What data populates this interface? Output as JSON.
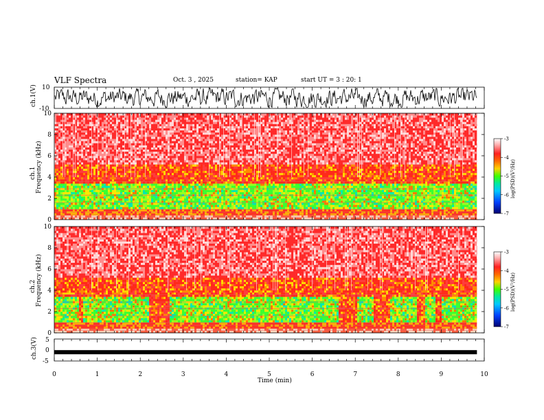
{
  "header": {
    "title": "VLF Spectra",
    "date": "Oct. 3 , 2025",
    "station": "station= KAP",
    "start": "start UT = 3 : 20: 1"
  },
  "chart_data": [
    {
      "type": "line",
      "panel": "ch1-waveform",
      "ylabel": "ch.1(V)",
      "ylim": [
        -10,
        10
      ],
      "yticks": [
        "10",
        "-10"
      ],
      "xlim": [
        0,
        10
      ],
      "color": "#000000"
    },
    {
      "type": "heatmap",
      "panel": "ch1-spectrogram",
      "ylabel_line1": "ch.1",
      "ylabel_line2": "Frequency (kHz)",
      "ylim": [
        0,
        10
      ],
      "yticks": [
        "0",
        "2",
        "4",
        "6",
        "8",
        "10"
      ],
      "xlim": [
        0,
        10
      ],
      "colorbar": {
        "ticks": [
          "-3",
          "-4",
          "-5",
          "-6",
          "-7"
        ],
        "label": "log(PSD)(V²/Hz)",
        "range": [
          -7,
          -3
        ]
      }
    },
    {
      "type": "heatmap",
      "panel": "ch2-spectrogram",
      "ylabel_line1": "ch.2",
      "ylabel_line2": "Frequency (kHz)",
      "ylim": [
        0,
        10
      ],
      "yticks": [
        "0",
        "2",
        "4",
        "6",
        "8",
        "10"
      ],
      "xlim": [
        0,
        10
      ],
      "gaps_min": [
        [
          0.55,
          0.65
        ],
        [
          2.2,
          2.65
        ],
        [
          6.6,
          7.0
        ],
        [
          7.4,
          7.8
        ],
        [
          8.4,
          8.6
        ],
        [
          8.85,
          9.0
        ]
      ],
      "colorbar": {
        "ticks": [
          "-3",
          "-4",
          "-5",
          "-6",
          "-7"
        ],
        "label": "log(PSD)(V²/Hz)",
        "range": [
          -7,
          -3
        ]
      }
    },
    {
      "type": "line",
      "panel": "ch3-waveform",
      "ylabel": "ch.3(V)",
      "ylim": [
        -5,
        5
      ],
      "yticks": [
        "5",
        "0",
        "-5"
      ],
      "xlim": [
        0,
        10
      ],
      "constant_value": -1,
      "color": "#000000"
    }
  ],
  "xaxis": {
    "label": "Time (min)",
    "ticks": [
      "0",
      "1",
      "2",
      "3",
      "4",
      "5",
      "6",
      "7",
      "8",
      "9",
      "10"
    ],
    "range": [
      0,
      10
    ],
    "data_end": 9.83
  }
}
